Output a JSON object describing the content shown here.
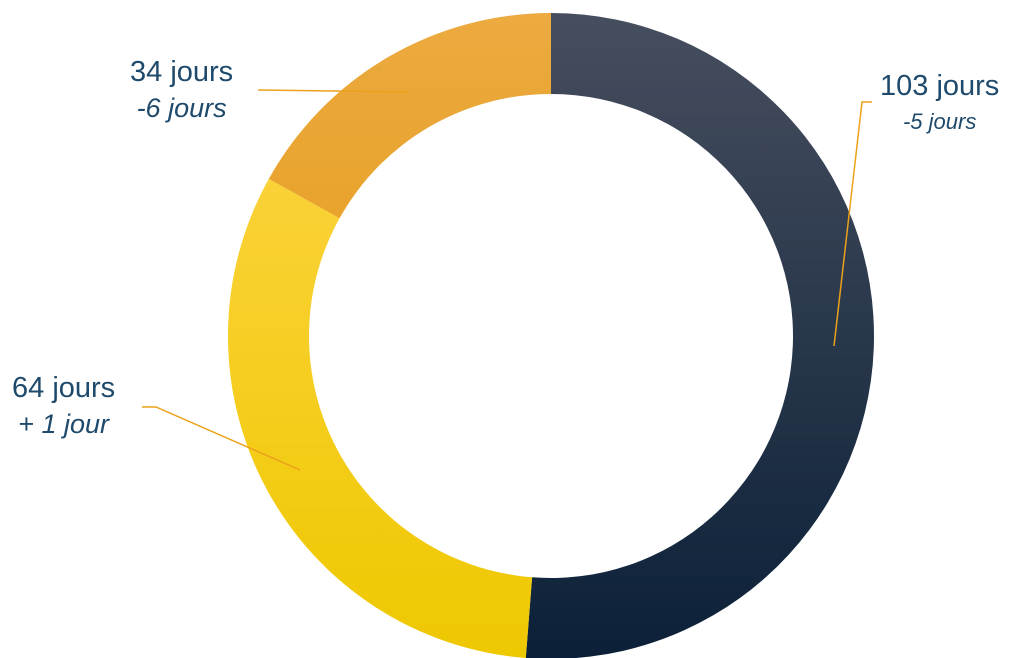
{
  "chart_data": {
    "type": "pie",
    "slices": [
      {
        "value": 103,
        "label": "103 jours",
        "delta": "-5 jours",
        "color_top": "#464e5e",
        "color_bottom": "#0b2038"
      },
      {
        "value": 64,
        "label": "64 jours",
        "delta": "+ 1 jour",
        "color_top": "#ffd54a",
        "color_bottom": "#eec800"
      },
      {
        "value": 34,
        "label": "34 jours",
        "delta": "-6 jours",
        "color_top": "#ecaa40",
        "color_bottom": "#e09500"
      }
    ],
    "leader_color": "#eba21a",
    "label_color": "#1f4a6b",
    "donut": true
  }
}
